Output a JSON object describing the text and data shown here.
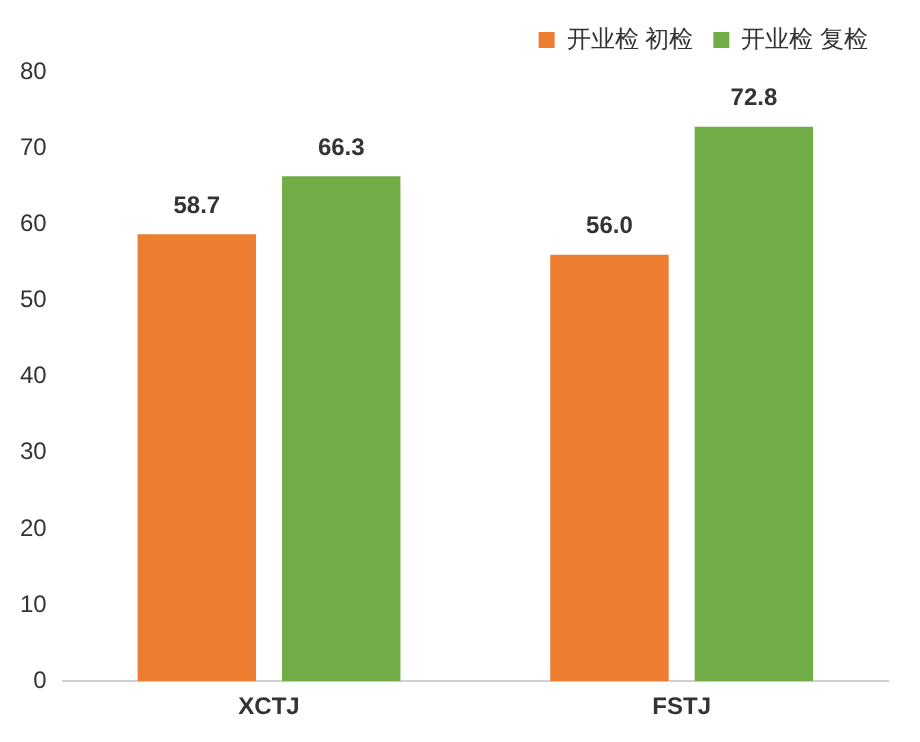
{
  "chart_data": {
    "type": "bar",
    "categories": [
      "XCTJ",
      "FSTJ"
    ],
    "series": [
      {
        "name": "开业检 初检",
        "color": "#ed7d31",
        "values": [
          58.7,
          56.0
        ],
        "value_labels": [
          "58.7",
          "56.0"
        ]
      },
      {
        "name": "开业检 复检",
        "color": "#70ad47",
        "values": [
          66.3,
          72.8
        ],
        "value_labels": [
          "66.3",
          "72.8"
        ]
      }
    ],
    "ylim": [
      0,
      80
    ],
    "yticks": [
      0,
      10,
      20,
      30,
      40,
      50,
      60,
      70,
      80
    ],
    "grid": false,
    "legend": "top right"
  }
}
